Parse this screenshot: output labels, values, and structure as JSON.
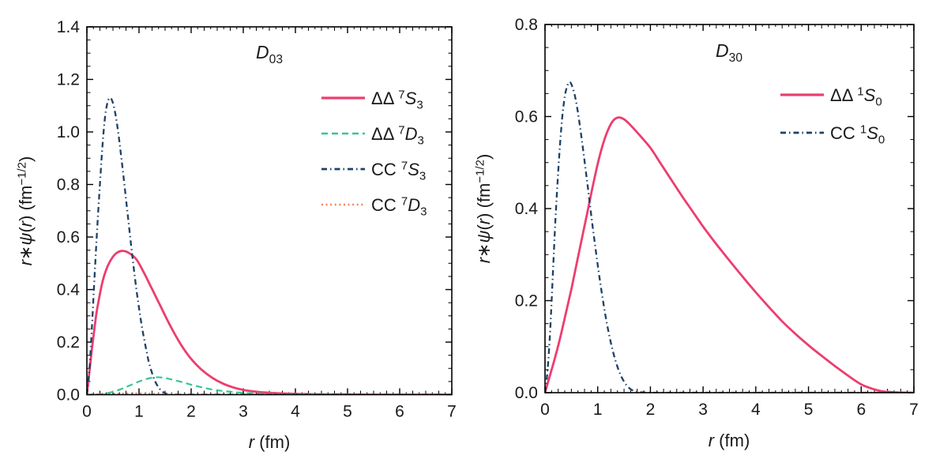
{
  "figure": {
    "background": "#ffffff",
    "text_color": "#1a1a1a",
    "frame_color": "#000000"
  },
  "chart_data": [
    {
      "type": "line",
      "title_text": "D03",
      "title_parts": [
        {
          "text": "D",
          "style": "italic"
        },
        {
          "text": "03",
          "style": "sub"
        }
      ],
      "xlabel_text": "r (fm)",
      "xlabel_parts": [
        {
          "text": "r",
          "style": "italic"
        },
        {
          "text": " (fm)"
        }
      ],
      "ylabel_text": "r*psi(r) (fm^-1/2)",
      "ylabel_parts": [
        {
          "text": "r",
          "style": "italic"
        },
        {
          "text": "∗"
        },
        {
          "text": "ψ",
          "style": "italic"
        },
        {
          "text": "("
        },
        {
          "text": "r",
          "style": "italic"
        },
        {
          "text": ") (fm"
        },
        {
          "text": "−1/2",
          "style": "sup"
        },
        {
          "text": ")"
        }
      ],
      "xlim": [
        0,
        7
      ],
      "ylim": [
        0,
        1.4
      ],
      "xtick_values": [
        0,
        1,
        2,
        3,
        4,
        5,
        6,
        7
      ],
      "xtick_labels": [
        "0",
        "1",
        "2",
        "3",
        "4",
        "5",
        "6",
        "7"
      ],
      "ytick_values": [
        0,
        0.2,
        0.4,
        0.6,
        0.8,
        1.0,
        1.2,
        1.4
      ],
      "ytick_labels": [
        "0.0",
        "0.2",
        "0.4",
        "0.6",
        "0.8",
        "1.0",
        "1.2",
        "1.4"
      ],
      "grid": false,
      "legend_position": "upper right",
      "series": [
        {
          "name": "ΔΔ 7S3",
          "label_parts": [
            {
              "text": "ΔΔ "
            },
            {
              "text": "7",
              "style": "sup"
            },
            {
              "text": "S",
              "style": "italic"
            },
            {
              "text": "3",
              "style": "sub"
            }
          ],
          "color": "#ed3d6f",
          "dash": "solid",
          "width": 2.8,
          "points": [
            [
              0,
              0
            ],
            [
              0.05,
              0.09
            ],
            [
              0.1,
              0.18
            ],
            [
              0.15,
              0.26
            ],
            [
              0.2,
              0.33
            ],
            [
              0.3,
              0.43
            ],
            [
              0.4,
              0.49
            ],
            [
              0.5,
              0.525
            ],
            [
              0.6,
              0.543
            ],
            [
              0.7,
              0.547
            ],
            [
              0.8,
              0.54
            ],
            [
              0.95,
              0.515
            ],
            [
              1.1,
              0.462
            ],
            [
              1.25,
              0.402
            ],
            [
              1.4,
              0.342
            ],
            [
              1.6,
              0.262
            ],
            [
              1.8,
              0.192
            ],
            [
              2.0,
              0.136
            ],
            [
              2.2,
              0.095
            ],
            [
              2.4,
              0.065
            ],
            [
              2.6,
              0.043
            ],
            [
              2.8,
              0.028
            ],
            [
              3.0,
              0.018
            ],
            [
              3.3,
              0.01
            ],
            [
              3.6,
              0.006
            ],
            [
              4.0,
              0.003
            ],
            [
              4.5,
              0.001
            ],
            [
              5.0,
              0.001
            ],
            [
              5.5,
              0
            ],
            [
              6.0,
              0
            ],
            [
              6.5,
              0
            ],
            [
              7,
              0
            ]
          ]
        },
        {
          "name": "ΔΔ 7D3",
          "label_parts": [
            {
              "text": "ΔΔ "
            },
            {
              "text": "7",
              "style": "sup"
            },
            {
              "text": "D",
              "style": "italic"
            },
            {
              "text": "3",
              "style": "sub"
            }
          ],
          "color": "#3bc492",
          "dash": "8 5",
          "width": 2.2,
          "points": [
            [
              0,
              0
            ],
            [
              0.2,
              0.001
            ],
            [
              0.4,
              0.006
            ],
            [
              0.6,
              0.017
            ],
            [
              0.8,
              0.033
            ],
            [
              1.0,
              0.05
            ],
            [
              1.15,
              0.06
            ],
            [
              1.3,
              0.066
            ],
            [
              1.45,
              0.065
            ],
            [
              1.6,
              0.059
            ],
            [
              1.8,
              0.049
            ],
            [
              2.0,
              0.038
            ],
            [
              2.2,
              0.028
            ],
            [
              2.4,
              0.02
            ],
            [
              2.6,
              0.014
            ],
            [
              2.8,
              0.01
            ],
            [
              3.0,
              0.007
            ],
            [
              3.3,
              0.004
            ],
            [
              3.6,
              0.002
            ],
            [
              4.0,
              0.001
            ],
            [
              4.5,
              0.001
            ],
            [
              5.0,
              0
            ],
            [
              6.0,
              0
            ],
            [
              7,
              0
            ]
          ]
        },
        {
          "name": "CC 7S3",
          "label_parts": [
            {
              "text": "CC "
            },
            {
              "text": "7",
              "style": "sup"
            },
            {
              "text": "S",
              "style": "italic"
            },
            {
              "text": "3",
              "style": "sub"
            }
          ],
          "color": "#1e4166",
          "dash": "7 4 1.5 4",
          "width": 2.3,
          "points": [
            [
              0,
              0
            ],
            [
              0.05,
              0.1
            ],
            [
              0.1,
              0.27
            ],
            [
              0.15,
              0.46
            ],
            [
              0.2,
              0.64
            ],
            [
              0.25,
              0.8
            ],
            [
              0.3,
              0.95
            ],
            [
              0.35,
              1.06
            ],
            [
              0.4,
              1.115
            ],
            [
              0.45,
              1.13
            ],
            [
              0.5,
              1.11
            ],
            [
              0.55,
              1.065
            ],
            [
              0.6,
              1.0
            ],
            [
              0.65,
              0.92
            ],
            [
              0.7,
              0.835
            ],
            [
              0.75,
              0.745
            ],
            [
              0.8,
              0.655
            ],
            [
              0.85,
              0.565
            ],
            [
              0.9,
              0.48
            ],
            [
              0.95,
              0.4
            ],
            [
              1.0,
              0.33
            ],
            [
              1.05,
              0.265
            ],
            [
              1.1,
              0.21
            ],
            [
              1.15,
              0.16
            ],
            [
              1.2,
              0.115
            ],
            [
              1.3,
              0.055
            ],
            [
              1.4,
              0.021
            ],
            [
              1.5,
              0.006
            ],
            [
              1.6,
              0.001
            ],
            [
              1.7,
              0
            ],
            [
              2.0,
              0
            ],
            [
              2.5,
              0
            ],
            [
              3.0,
              0
            ],
            [
              3.5,
              0
            ],
            [
              4.0,
              0
            ],
            [
              4.5,
              0
            ],
            [
              5.0,
              0
            ],
            [
              5.5,
              0
            ],
            [
              6.0,
              0
            ],
            [
              6.5,
              0
            ],
            [
              7,
              0
            ]
          ]
        },
        {
          "name": "CC 7D3",
          "label_parts": [
            {
              "text": "CC "
            },
            {
              "text": "7",
              "style": "sup"
            },
            {
              "text": "D",
              "style": "italic"
            },
            {
              "text": "3",
              "style": "sub"
            }
          ],
          "color": "#f2794e",
          "dash": "1.8 3.8",
          "width": 2.2,
          "points": [
            [
              0,
              0
            ],
            [
              0.2,
              0.001
            ],
            [
              0.4,
              0.003
            ],
            [
              0.6,
              0.004
            ],
            [
              0.8,
              0.005
            ],
            [
              1.0,
              0.005
            ],
            [
              1.2,
              0.004
            ],
            [
              1.5,
              0.003
            ],
            [
              1.8,
              0.001
            ],
            [
              2.1,
              0.001
            ],
            [
              2.5,
              0
            ],
            [
              3,
              0
            ],
            [
              4,
              0
            ],
            [
              5,
              0
            ],
            [
              6,
              0
            ],
            [
              7,
              0
            ]
          ]
        }
      ]
    },
    {
      "type": "line",
      "title_text": "D30",
      "title_parts": [
        {
          "text": "D",
          "style": "italic"
        },
        {
          "text": "30",
          "style": "sub"
        }
      ],
      "xlabel_text": "r (fm)",
      "xlabel_parts": [
        {
          "text": "r",
          "style": "italic"
        },
        {
          "text": " (fm)"
        }
      ],
      "ylabel_text": "r*psi(r) (fm^-1/2)",
      "ylabel_parts": [
        {
          "text": "r",
          "style": "italic"
        },
        {
          "text": "∗"
        },
        {
          "text": "ψ",
          "style": "italic"
        },
        {
          "text": "("
        },
        {
          "text": "r",
          "style": "italic"
        },
        {
          "text": ") (fm"
        },
        {
          "text": "−1/2",
          "style": "sup"
        },
        {
          "text": ")"
        }
      ],
      "xlim": [
        0,
        7
      ],
      "ylim": [
        0,
        0.8
      ],
      "xtick_values": [
        0,
        1,
        2,
        3,
        4,
        5,
        6,
        7
      ],
      "xtick_labels": [
        "0",
        "1",
        "2",
        "3",
        "4",
        "5",
        "6",
        "7"
      ],
      "ytick_values": [
        0,
        0.2,
        0.4,
        0.6,
        0.8
      ],
      "ytick_labels": [
        "0.0",
        "0.2",
        "0.4",
        "0.6",
        "0.8"
      ],
      "grid": false,
      "legend_position": "upper right",
      "series": [
        {
          "name": "ΔΔ 1S0",
          "label_parts": [
            {
              "text": "ΔΔ "
            },
            {
              "text": "1",
              "style": "sup"
            },
            {
              "text": "S",
              "style": "italic"
            },
            {
              "text": "0",
              "style": "sub"
            }
          ],
          "color": "#ed3d6f",
          "dash": "solid",
          "width": 2.8,
          "points": [
            [
              0,
              0
            ],
            [
              0.1,
              0.04
            ],
            [
              0.2,
              0.08
            ],
            [
              0.3,
              0.125
            ],
            [
              0.4,
              0.175
            ],
            [
              0.5,
              0.225
            ],
            [
              0.6,
              0.28
            ],
            [
              0.7,
              0.335
            ],
            [
              0.8,
              0.39
            ],
            [
              0.9,
              0.445
            ],
            [
              1.0,
              0.497
            ],
            [
              1.1,
              0.54
            ],
            [
              1.2,
              0.572
            ],
            [
              1.3,
              0.592
            ],
            [
              1.4,
              0.598
            ],
            [
              1.5,
              0.594
            ],
            [
              1.6,
              0.584
            ],
            [
              1.8,
              0.559
            ],
            [
              2.0,
              0.532
            ],
            [
              2.2,
              0.497
            ],
            [
              2.4,
              0.462
            ],
            [
              2.6,
              0.427
            ],
            [
              2.8,
              0.394
            ],
            [
              3.0,
              0.361
            ],
            [
              3.25,
              0.323
            ],
            [
              3.5,
              0.287
            ],
            [
              3.75,
              0.252
            ],
            [
              4.0,
              0.218
            ],
            [
              4.25,
              0.186
            ],
            [
              4.5,
              0.155
            ],
            [
              4.75,
              0.128
            ],
            [
              5.0,
              0.103
            ],
            [
              5.25,
              0.08
            ],
            [
              5.5,
              0.058
            ],
            [
              5.75,
              0.037
            ],
            [
              6.0,
              0.018
            ],
            [
              6.2,
              0.009
            ],
            [
              6.4,
              0.003
            ],
            [
              6.6,
              0.001
            ],
            [
              6.8,
              0
            ],
            [
              7,
              0
            ]
          ]
        },
        {
          "name": "CC 1S0",
          "label_parts": [
            {
              "text": "CC "
            },
            {
              "text": "1",
              "style": "sup"
            },
            {
              "text": "S",
              "style": "italic"
            },
            {
              "text": "0",
              "style": "sub"
            }
          ],
          "color": "#1e4166",
          "dash": "7 4 1.5 4",
          "width": 2.3,
          "points": [
            [
              0,
              0
            ],
            [
              0.05,
              0.05
            ],
            [
              0.1,
              0.14
            ],
            [
              0.15,
              0.26
            ],
            [
              0.2,
              0.38
            ],
            [
              0.25,
              0.48
            ],
            [
              0.3,
              0.562
            ],
            [
              0.35,
              0.623
            ],
            [
              0.4,
              0.658
            ],
            [
              0.47,
              0.675
            ],
            [
              0.55,
              0.653
            ],
            [
              0.62,
              0.612
            ],
            [
              0.7,
              0.548
            ],
            [
              0.8,
              0.458
            ],
            [
              0.9,
              0.365
            ],
            [
              1.0,
              0.278
            ],
            [
              1.1,
              0.2
            ],
            [
              1.2,
              0.135
            ],
            [
              1.3,
              0.085
            ],
            [
              1.4,
              0.048
            ],
            [
              1.5,
              0.024
            ],
            [
              1.6,
              0.01
            ],
            [
              1.7,
              0.003
            ],
            [
              1.8,
              0.001
            ],
            [
              2.0,
              0
            ],
            [
              2.5,
              0
            ],
            [
              3.0,
              0
            ],
            [
              3.5,
              0
            ],
            [
              4.0,
              0
            ],
            [
              4.5,
              0
            ],
            [
              5.0,
              0
            ],
            [
              5.5,
              0
            ],
            [
              6.0,
              0
            ],
            [
              6.5,
              0
            ],
            [
              7,
              0
            ]
          ]
        }
      ]
    }
  ]
}
